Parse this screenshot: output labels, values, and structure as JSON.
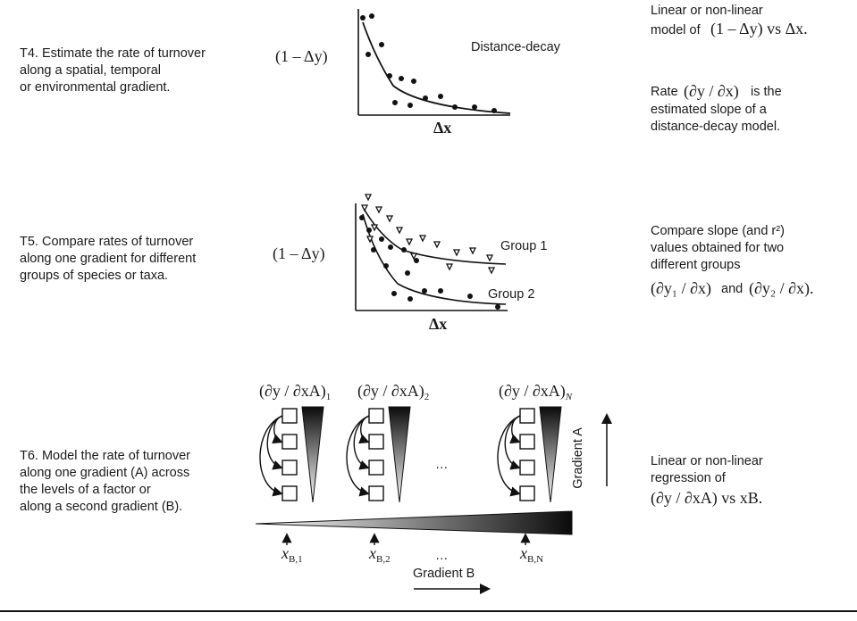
{
  "rows": [
    {
      "id": "T4",
      "task": "T4. Estimate the rate of turnover\nalong a spatial, temporal\nor environmental gradient.",
      "y_label": "(1 – Δy)",
      "x_label": "Δx",
      "curve_label": "Distance-decay",
      "desc_line1": "Linear or non-linear",
      "desc_line2": "model of",
      "desc_expr": "(1 – Δy) vs Δx.",
      "desc_rate_word": "Rate",
      "desc_rate_expr": "(∂y / ∂x)",
      "desc_rate_tail": "is the",
      "desc_line4": "estimated slope of a\ndistance-decay model."
    },
    {
      "id": "T5",
      "task": "T5. Compare rates of turnover\nalong one gradient for different\ngroups of species or taxa.",
      "y_label": "(1 – Δy)",
      "x_label": "Δx",
      "group1_label": "Group 1",
      "group2_label": "Group 2",
      "desc_main": "Compare slope (and r²)\nvalues obtained for two\ndifferent groups",
      "desc_expr1": "(∂y₁ / ∂x)",
      "desc_and": "and",
      "desc_expr2": "(∂y₂ / ∂x)."
    },
    {
      "id": "T6",
      "task": "T6. Model the rate of turnover\nalong one gradient (A) across\nthe levels of a factor or\nalong a second gradient (B).",
      "slope_labels": [
        "(∂y / ∂x_A)_1",
        "(∂y / ∂x_A)_2",
        "(∂y / ∂x_A)_N"
      ],
      "slope_main": "(∂y / ∂xA)",
      "slope_subs": [
        "1",
        "2",
        "N"
      ],
      "ellipsis": "…",
      "gradient_a_label": "Gradient A",
      "gradient_b_label": "Gradient B",
      "xb_main": "x",
      "xb_subs": [
        "B,1",
        "B,2",
        "B,N"
      ],
      "desc_main": "Linear or non-linear\nregression of",
      "desc_expr": "(∂y / ∂xA) vs xB."
    }
  ],
  "colors": {
    "ink": "#1a1a1a",
    "gradient_dark": "#0b0b0b",
    "gradient_light": "#ffffff"
  }
}
